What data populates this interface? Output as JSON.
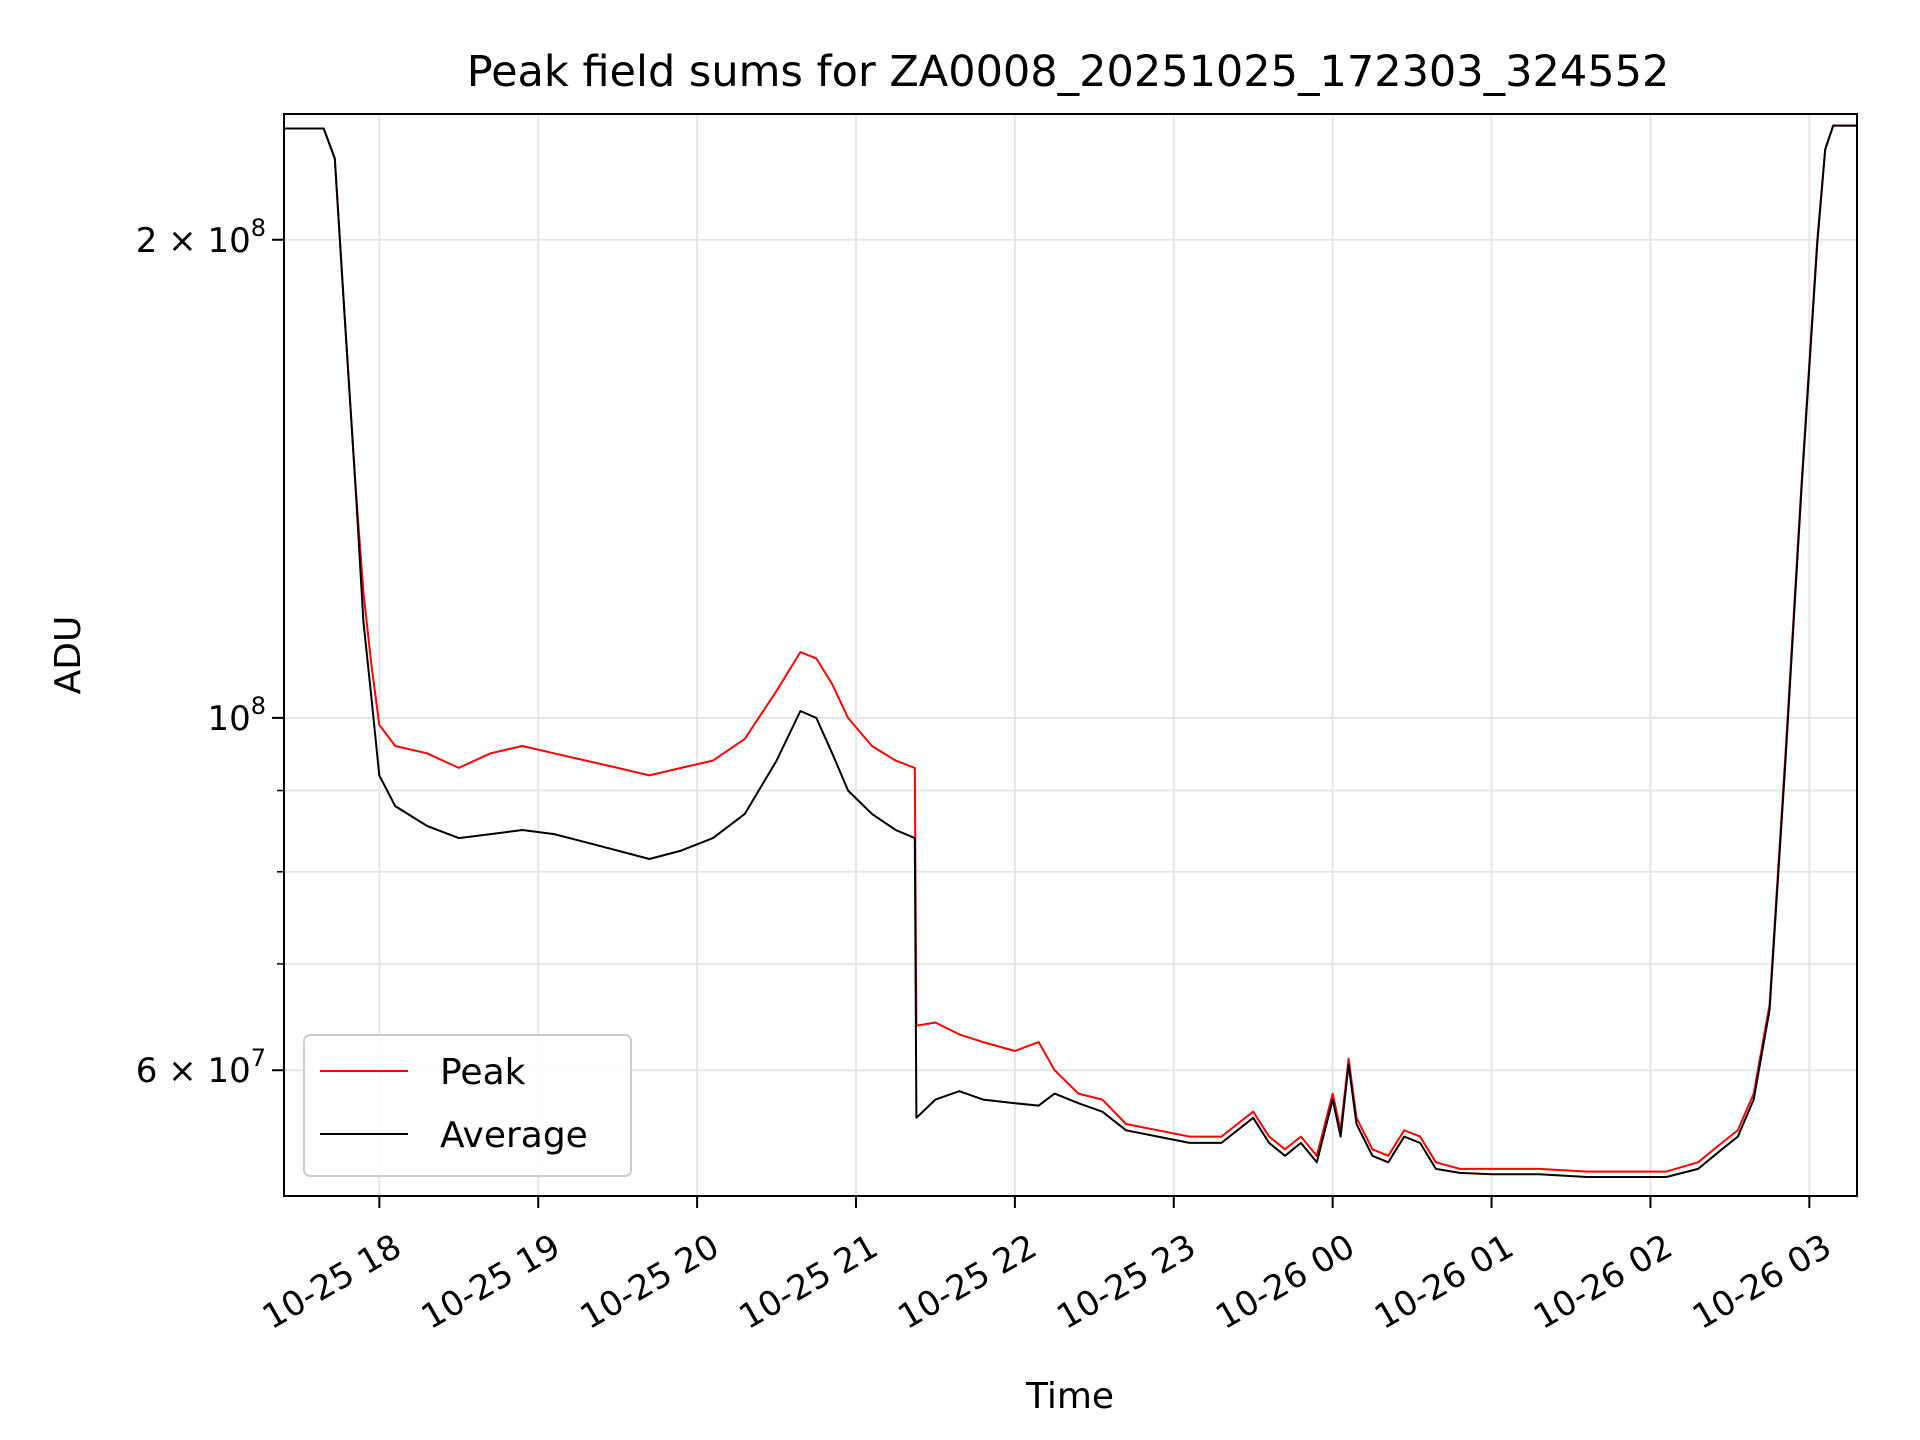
{
  "chart_data": {
    "type": "line",
    "title": "Peak field sums for ZA0008_20251025_172303_324552",
    "xlabel": "Time",
    "ylabel": "ADU",
    "yscale": "log",
    "ylim": [
      50000000,
      240000000
    ],
    "xlim_hours": [
      -0.6,
      9.3
    ],
    "grid": true,
    "legend_position": "lower-left",
    "x_ticks": [
      {
        "hour": 0,
        "label": "10-25 18"
      },
      {
        "hour": 1,
        "label": "10-25 19"
      },
      {
        "hour": 2,
        "label": "10-25 20"
      },
      {
        "hour": 3,
        "label": "10-25 21"
      },
      {
        "hour": 4,
        "label": "10-25 22"
      },
      {
        "hour": 5,
        "label": "10-25 23"
      },
      {
        "hour": 6,
        "label": "10-26 00"
      },
      {
        "hour": 7,
        "label": "10-26 01"
      },
      {
        "hour": 8,
        "label": "10-26 02"
      },
      {
        "hour": 9,
        "label": "10-26 03"
      }
    ],
    "y_ticks_major": [
      {
        "value": 200000000,
        "base": "2 × 10",
        "exp": "8"
      },
      {
        "value": 100000000,
        "base": "10",
        "exp": "8"
      },
      {
        "value": 60000000,
        "base": "6 × 10",
        "exp": "7"
      }
    ],
    "y_ticks_minor": [
      70000000,
      80000000,
      90000000
    ],
    "series": [
      {
        "name": "Peak",
        "color": "#ff0000",
        "points": [
          [
            -0.6,
            235000000
          ],
          [
            -0.35,
            235000000
          ],
          [
            -0.28,
            225000000
          ],
          [
            -0.22,
            180000000
          ],
          [
            -0.15,
            140000000
          ],
          [
            -0.1,
            120000000
          ],
          [
            -0.05,
            108000000
          ],
          [
            0.0,
            99000000
          ],
          [
            0.1,
            96000000
          ],
          [
            0.3,
            95000000
          ],
          [
            0.5,
            93000000
          ],
          [
            0.7,
            95000000
          ],
          [
            0.9,
            96000000
          ],
          [
            1.1,
            95000000
          ],
          [
            1.3,
            94000000
          ],
          [
            1.5,
            93000000
          ],
          [
            1.7,
            92000000
          ],
          [
            1.9,
            93000000
          ],
          [
            2.1,
            94000000
          ],
          [
            2.3,
            97000000
          ],
          [
            2.5,
            104000000
          ],
          [
            2.65,
            110000000
          ],
          [
            2.75,
            109000000
          ],
          [
            2.85,
            105000000
          ],
          [
            2.95,
            100000000
          ],
          [
            3.1,
            96000000
          ],
          [
            3.25,
            94000000
          ],
          [
            3.37,
            93000000
          ],
          [
            3.38,
            64000000
          ],
          [
            3.5,
            64300000
          ],
          [
            3.65,
            63200000
          ],
          [
            3.8,
            62500000
          ],
          [
            4.0,
            61700000
          ],
          [
            4.15,
            62500000
          ],
          [
            4.25,
            60000000
          ],
          [
            4.4,
            58000000
          ],
          [
            4.55,
            57500000
          ],
          [
            4.7,
            55500000
          ],
          [
            4.9,
            55000000
          ],
          [
            5.1,
            54500000
          ],
          [
            5.3,
            54500000
          ],
          [
            5.5,
            56500000
          ],
          [
            5.6,
            54500000
          ],
          [
            5.7,
            53500000
          ],
          [
            5.8,
            54500000
          ],
          [
            5.9,
            53000000
          ],
          [
            6.0,
            58000000
          ],
          [
            6.05,
            55000000
          ],
          [
            6.1,
            61000000
          ],
          [
            6.15,
            56000000
          ],
          [
            6.25,
            53500000
          ],
          [
            6.35,
            53000000
          ],
          [
            6.45,
            55000000
          ],
          [
            6.55,
            54500000
          ],
          [
            6.65,
            52500000
          ],
          [
            6.8,
            52000000
          ],
          [
            7.0,
            52000000
          ],
          [
            7.3,
            52000000
          ],
          [
            7.6,
            51800000
          ],
          [
            7.9,
            51800000
          ],
          [
            8.1,
            51800000
          ],
          [
            8.3,
            52500000
          ],
          [
            8.45,
            54000000
          ],
          [
            8.55,
            55000000
          ],
          [
            8.65,
            58000000
          ],
          [
            8.75,
            66000000
          ],
          [
            8.85,
            95000000
          ],
          [
            8.95,
            140000000
          ],
          [
            9.05,
            200000000
          ],
          [
            9.1,
            228000000
          ],
          [
            9.15,
            236000000
          ],
          [
            9.3,
            236000000
          ]
        ]
      },
      {
        "name": "Average",
        "color": "#000000",
        "points": [
          [
            -0.6,
            235000000
          ],
          [
            -0.35,
            235000000
          ],
          [
            -0.28,
            225000000
          ],
          [
            -0.22,
            180000000
          ],
          [
            -0.15,
            140000000
          ],
          [
            -0.1,
            115000000
          ],
          [
            -0.05,
            103000000
          ],
          [
            0.0,
            92000000
          ],
          [
            0.1,
            88000000
          ],
          [
            0.3,
            85500000
          ],
          [
            0.5,
            84000000
          ],
          [
            0.7,
            84500000
          ],
          [
            0.9,
            85000000
          ],
          [
            1.1,
            84500000
          ],
          [
            1.3,
            83500000
          ],
          [
            1.5,
            82500000
          ],
          [
            1.7,
            81500000
          ],
          [
            1.9,
            82500000
          ],
          [
            2.1,
            84000000
          ],
          [
            2.3,
            87000000
          ],
          [
            2.5,
            94000000
          ],
          [
            2.65,
            101000000
          ],
          [
            2.75,
            100000000
          ],
          [
            2.85,
            95000000
          ],
          [
            2.95,
            90000000
          ],
          [
            3.1,
            87000000
          ],
          [
            3.25,
            85000000
          ],
          [
            3.37,
            84000000
          ],
          [
            3.38,
            56000000
          ],
          [
            3.5,
            57500000
          ],
          [
            3.65,
            58200000
          ],
          [
            3.8,
            57500000
          ],
          [
            4.0,
            57200000
          ],
          [
            4.15,
            57000000
          ],
          [
            4.25,
            58000000
          ],
          [
            4.4,
            57200000
          ],
          [
            4.55,
            56500000
          ],
          [
            4.7,
            55000000
          ],
          [
            4.9,
            54500000
          ],
          [
            5.1,
            54000000
          ],
          [
            5.3,
            54000000
          ],
          [
            5.5,
            56000000
          ],
          [
            5.6,
            54000000
          ],
          [
            5.7,
            53000000
          ],
          [
            5.8,
            54000000
          ],
          [
            5.9,
            52500000
          ],
          [
            6.0,
            57500000
          ],
          [
            6.05,
            54500000
          ],
          [
            6.1,
            60500000
          ],
          [
            6.15,
            55500000
          ],
          [
            6.25,
            53000000
          ],
          [
            6.35,
            52500000
          ],
          [
            6.45,
            54500000
          ],
          [
            6.55,
            54000000
          ],
          [
            6.65,
            52000000
          ],
          [
            6.8,
            51700000
          ],
          [
            7.0,
            51600000
          ],
          [
            7.3,
            51600000
          ],
          [
            7.6,
            51400000
          ],
          [
            7.9,
            51400000
          ],
          [
            8.1,
            51400000
          ],
          [
            8.3,
            52000000
          ],
          [
            8.45,
            53500000
          ],
          [
            8.55,
            54500000
          ],
          [
            8.65,
            57500000
          ],
          [
            8.75,
            65500000
          ],
          [
            8.85,
            94000000
          ],
          [
            8.95,
            139000000
          ],
          [
            9.05,
            199000000
          ],
          [
            9.1,
            228000000
          ],
          [
            9.15,
            236000000
          ],
          [
            9.3,
            236000000
          ]
        ]
      }
    ]
  }
}
